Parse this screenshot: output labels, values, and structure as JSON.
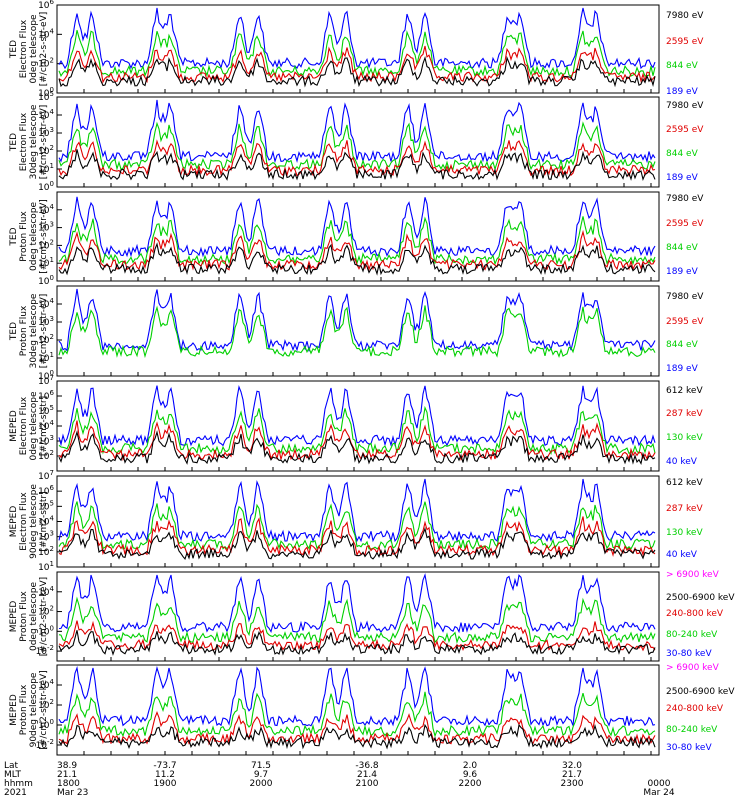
{
  "colors": {
    "blue": "#0000ff",
    "red": "#e00000",
    "green": "#00d000",
    "black": "#000000",
    "magenta": "#ff00ff"
  },
  "chart_data": {
    "type": "line",
    "xaxis": {
      "rows": [
        {
          "label": "Lat",
          "values": [
            "38.9",
            "-73.7",
            "71.5",
            "-36.8",
            "2.0",
            "32.0",
            ""
          ]
        },
        {
          "label": "MLT",
          "values": [
            "21.1",
            "11.2",
            "9.7",
            "21.4",
            "9.6",
            "21.7",
            ""
          ]
        },
        {
          "label": "hhmm",
          "values": [
            "1800",
            "1900",
            "2000",
            "2100",
            "2200",
            "2300",
            "0000"
          ]
        },
        {
          "label": "2021",
          "values": [
            "Mar 23",
            "",
            "",
            "",
            "",
            "",
            "Mar 24"
          ]
        }
      ],
      "range": [
        "1800",
        "0000"
      ]
    },
    "panels": [
      {
        "ylabel": [
          "TED",
          "Electron Flux",
          "0deg telescope",
          "[#/cm2-s-str-eV]"
        ],
        "ylog": [
          1.0,
          1000000.0
        ],
        "yticks": [
          {
            "base": "10",
            "exp": "6"
          },
          {
            "base": "10",
            "exp": "4"
          },
          {
            "base": "10",
            "exp": "2"
          },
          {
            "base": "10",
            "exp": "0"
          }
        ],
        "legend": [
          {
            "text": "7980 eV",
            "color": "black"
          },
          {
            "text": "2595 eV",
            "color": "red"
          },
          {
            "text": "844 eV",
            "color": "green"
          },
          {
            "text": "189 eV",
            "color": "blue"
          }
        ]
      },
      {
        "ylabel": [
          "TED",
          "Electron Flux",
          "30deg telescope",
          "[#/cm2-s-str-eV]"
        ],
        "ylog": [
          1.0,
          100000.0
        ],
        "yticks": [
          {
            "base": "10",
            "exp": "5"
          },
          {
            "base": "10",
            "exp": "4"
          },
          {
            "base": "10",
            "exp": "3"
          },
          {
            "base": "10",
            "exp": "2"
          },
          {
            "base": "10",
            "exp": "1"
          },
          {
            "base": "10",
            "exp": "0"
          }
        ],
        "legend": [
          {
            "text": "7980 eV",
            "color": "black"
          },
          {
            "text": "2595 eV",
            "color": "red"
          },
          {
            "text": "844 eV",
            "color": "green"
          },
          {
            "text": "189 eV",
            "color": "blue"
          }
        ]
      },
      {
        "ylabel": [
          "TED",
          "Proton Flux",
          "0deg telescope",
          "[#/cm2-s-str-eV]"
        ],
        "ylog": [
          1.0,
          100000.0
        ],
        "yticks": [
          {
            "base": "10",
            "exp": "4"
          },
          {
            "base": "10",
            "exp": "3"
          },
          {
            "base": "10",
            "exp": "2"
          },
          {
            "base": "10",
            "exp": "1"
          },
          {
            "base": "10",
            "exp": "0"
          }
        ],
        "legend": [
          {
            "text": "7980 eV",
            "color": "black"
          },
          {
            "text": "2595 eV",
            "color": "red"
          },
          {
            "text": "844 eV",
            "color": "green"
          },
          {
            "text": "189 eV",
            "color": "blue"
          }
        ]
      },
      {
        "ylabel": [
          "TED",
          "Proton Flux",
          "30deg telescope",
          "[#/cm2-s-str-eV]"
        ],
        "ylog": [
          1.0,
          100000.0
        ],
        "yticks": [
          {
            "base": "10",
            "exp": "4"
          },
          {
            "base": "10",
            "exp": "3"
          },
          {
            "base": "10",
            "exp": "2"
          },
          {
            "base": "10",
            "exp": "1"
          },
          {
            "base": "10",
            "exp": "0"
          }
        ],
        "legend": [
          {
            "text": "7980 eV",
            "color": "black"
          },
          {
            "text": "2595 eV",
            "color": "red"
          },
          {
            "text": "844 eV",
            "color": "green"
          },
          {
            "text": "189 eV",
            "color": "blue"
          }
        ]
      },
      {
        "ylabel": [
          "MEPED",
          "Electron Flux",
          "0deg telescope",
          "[#/cm2-s-str]"
        ],
        "ylog": [
          10.0,
          10000000.0
        ],
        "yticks": [
          {
            "base": "10",
            "exp": "7"
          },
          {
            "base": "10",
            "exp": "6"
          },
          {
            "base": "10",
            "exp": "5"
          },
          {
            "base": "10",
            "exp": "4"
          },
          {
            "base": "10",
            "exp": "3"
          },
          {
            "base": "10",
            "exp": "2"
          }
        ],
        "legend": [
          {
            "text": "612 keV",
            "color": "black"
          },
          {
            "text": "287 keV",
            "color": "red"
          },
          {
            "text": "130 keV",
            "color": "green"
          },
          {
            "text": "40 keV",
            "color": "blue"
          }
        ]
      },
      {
        "ylabel": [
          "MEPED",
          "Electron Flux",
          "90deg telescope",
          "[#/cm2-s-str]"
        ],
        "ylog": [
          10.0,
          10000000.0
        ],
        "yticks": [
          {
            "base": "10",
            "exp": "7"
          },
          {
            "base": "10",
            "exp": "6"
          },
          {
            "base": "10",
            "exp": "5"
          },
          {
            "base": "10",
            "exp": "4"
          },
          {
            "base": "10",
            "exp": "3"
          },
          {
            "base": "10",
            "exp": "2"
          },
          {
            "base": "10",
            "exp": "1"
          }
        ],
        "legend": [
          {
            "text": "612 keV",
            "color": "black"
          },
          {
            "text": "287 keV",
            "color": "red"
          },
          {
            "text": "130 keV",
            "color": "green"
          },
          {
            "text": "40 keV",
            "color": "blue"
          }
        ]
      },
      {
        "ylabel": [
          "MEPED",
          "Proton Flux",
          "0deg telescope",
          "[#/cm2-s-str-keV]"
        ],
        "ylog": [
          0.001,
          1000000.0
        ],
        "yticks": [
          {
            "base": "10",
            "exp": "4"
          },
          {
            "base": "10",
            "exp": "2"
          },
          {
            "base": "10",
            "exp": "0"
          },
          {
            "base": "10",
            "exp": "-2"
          }
        ],
        "legend": [
          {
            "text": "> 6900 keV",
            "color": "magenta"
          },
          {
            "text": "2500-6900 keV",
            "color": "black"
          },
          {
            "text": "240-800 keV",
            "color": "red"
          },
          {
            "text": "80-240 keV",
            "color": "green"
          },
          {
            "text": "30-80 keV",
            "color": "blue"
          }
        ]
      },
      {
        "ylabel": [
          "MEPED",
          "Proton Flux",
          "90deg telescope",
          "[#/cm2-s-str-keV]"
        ],
        "ylog": [
          0.001,
          1000000.0
        ],
        "yticks": [
          {
            "base": "10",
            "exp": "4"
          },
          {
            "base": "10",
            "exp": "2"
          },
          {
            "base": "10",
            "exp": "0"
          },
          {
            "base": "10",
            "exp": "-2"
          }
        ],
        "legend": [
          {
            "text": "> 6900 keV",
            "color": "magenta"
          },
          {
            "text": "2500-6900 keV",
            "color": "black"
          },
          {
            "text": "240-800 keV",
            "color": "red"
          },
          {
            "text": "80-240 keV",
            "color": "green"
          },
          {
            "text": "30-80 keV",
            "color": "blue"
          }
        ]
      }
    ]
  }
}
